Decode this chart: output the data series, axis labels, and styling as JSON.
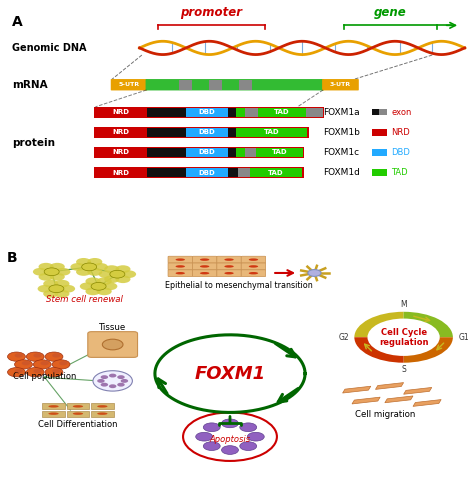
{
  "title_A": "A",
  "title_B": "B",
  "genomic_dna_label": "Genomic DNA",
  "promoter_label": "promoter",
  "gene_label": "gene",
  "mrna_label": "mRNA",
  "protein_label": "protein",
  "utr5_label": "5-UTR",
  "utr3_label": "3-UTR",
  "foxm_isoforms": [
    "FOXM1a",
    "FOXM1b",
    "FOXM1c",
    "FOXM1d"
  ],
  "nrd_color": "#cc0000",
  "dbd_color": "#22aaff",
  "tad_color": "#22cc00",
  "black_color": "#111111",
  "gray_color": "#888888",
  "utr_color": "#e8a000",
  "mrna_green": "#33bb33",
  "bg_color": "#ffffff",
  "foxm1_text": "FOXM1",
  "foxm1_color": "#cc0000",
  "green_dark": "#006600",
  "stem_color": "#cc0000",
  "promoter_color": "#cc0000",
  "gene_color": "#009900",
  "dna_color1": "#e8a000",
  "dna_color2": "#cc2200",
  "rung_color": "#4488cc",
  "utr_text_color": "#ffffff",
  "legend_text_colors": [
    "#cc0000",
    "#cc0000",
    "#22aaff",
    "#22cc00"
  ],
  "legend_box_colors_1": [
    "#111111",
    "#cc0000",
    "#22aaff",
    "#22cc00"
  ],
  "legend_box_colors_2": [
    "#888888",
    null,
    null,
    null
  ],
  "legend_labels": [
    "exon",
    "NRD",
    "DBD",
    "TAD"
  ],
  "cell_cycle_colors": [
    "#c8b820",
    "#cc6600",
    "#cc3300",
    "#88bb22"
  ],
  "cell_cycle_angles": [
    90,
    0,
    270,
    180
  ],
  "cell_migration_color": "#e8a060",
  "cell_pop_color": "#e06020",
  "apoptosis_color": "#cc0000",
  "apoptosis_cell_color": "#9060c0",
  "tissue_color": "#e8b87a",
  "diff_color": "#d4b870",
  "diff_spot_color": "#cc3300",
  "stem_flower_color": "#d4cc40",
  "epi_cell_color": "#e8b87a",
  "epi_spot_color": "#cc2200",
  "meso_cell_color": "#b0b0e0"
}
